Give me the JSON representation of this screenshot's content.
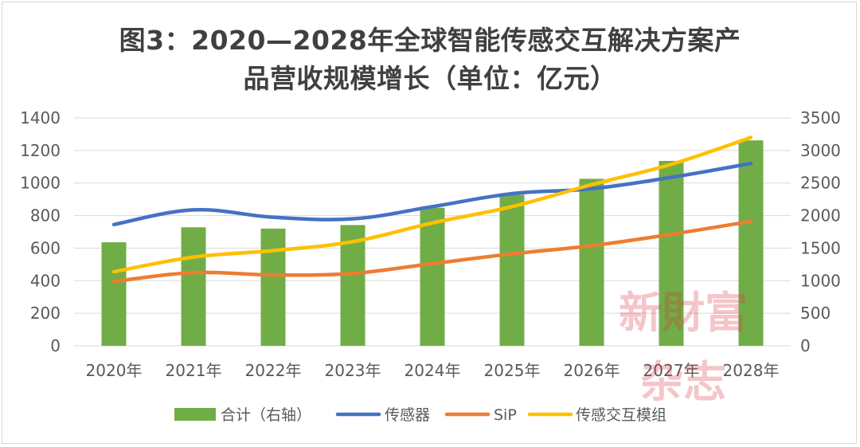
{
  "title_line1": "图3：2020—2028年全球智能传感交互解决方案产",
  "title_line2": "品营收规模增长（单位：亿元）",
  "watermark": [
    "新財富",
    "杂志"
  ],
  "colors": {
    "bar": "#70ad47",
    "sensor": "#4472c4",
    "sip": "#ed7d31",
    "module": "#ffc000",
    "grid": "#d9d9d9",
    "axis_text": "#595959",
    "title": "#404040"
  },
  "chart_data": {
    "type": "bar",
    "categories": [
      "2020年",
      "2021年",
      "2022年",
      "2023年",
      "2024年",
      "2025年",
      "2026年",
      "2027年",
      "2028年"
    ],
    "ylim_left": [
      0,
      1400
    ],
    "ylim_right": [
      0,
      3500
    ],
    "yticks_left": [
      "0",
      "200",
      "400",
      "600",
      "800",
      "1000",
      "1200",
      "1400"
    ],
    "yticks_right": [
      "0",
      "500",
      "1000",
      "1500",
      "2000",
      "2500",
      "3000",
      "3500"
    ],
    "grid": true,
    "legend_position": "bottom",
    "series": [
      {
        "name": "合计（右轴）",
        "type": "bar",
        "axis": "right",
        "values": [
          1590,
          1820,
          1800,
          1855,
          2120,
          2320,
          2565,
          2840,
          3155
        ]
      },
      {
        "name": "传感器",
        "type": "line",
        "axis": "left",
        "values": [
          745,
          835,
          790,
          780,
          855,
          935,
          965,
          1035,
          1120
        ]
      },
      {
        "name": "SiP",
        "type": "line",
        "axis": "left",
        "values": [
          395,
          450,
          435,
          445,
          505,
          565,
          615,
          685,
          765
        ]
      },
      {
        "name": "传感交互模组",
        "type": "line",
        "axis": "left",
        "values": [
          455,
          545,
          585,
          640,
          755,
          855,
          990,
          1115,
          1280
        ]
      }
    ]
  }
}
